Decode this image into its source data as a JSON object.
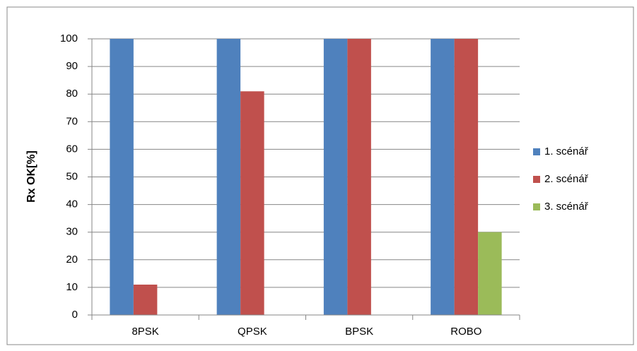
{
  "chart_data": {
    "type": "bar",
    "y_label": "Rx OK[%]",
    "categories": [
      "8PSK",
      "QPSK",
      "BPSK",
      "ROBO"
    ],
    "series": [
      {
        "name": "1. scénář",
        "color": "#4f81bd",
        "values": [
          100,
          100,
          100,
          100
        ]
      },
      {
        "name": "2. scénář",
        "color": "#c0504d",
        "values": [
          11,
          81,
          100,
          100
        ]
      },
      {
        "name": "3. scénář",
        "color": "#9bbb59",
        "values": [
          0,
          0,
          0,
          30
        ]
      }
    ],
    "ylim": [
      0,
      100
    ],
    "yticks": [
      0,
      10,
      20,
      30,
      40,
      50,
      60,
      70,
      80,
      90,
      100
    ],
    "grid": true,
    "legend": "right"
  }
}
